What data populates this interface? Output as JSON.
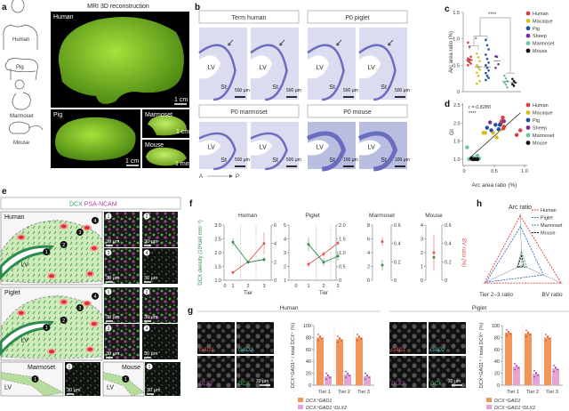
{
  "panel_labels": {
    "a": "a",
    "b": "b",
    "c": "c",
    "d": "d",
    "e": "e",
    "f": "f",
    "g": "g",
    "h": "h"
  },
  "a": {
    "title": "MRI 3D reconstruction",
    "species": [
      "Human",
      "Pig",
      "Marmoset",
      "Mouse"
    ],
    "panels": [
      {
        "label": "Human",
        "scale": "1 cm"
      },
      {
        "label": "Pig",
        "scale": "1 cm"
      },
      {
        "label": "Marmoset",
        "scale": "1 cm"
      },
      {
        "label": "Mouse",
        "scale": "1 mm"
      }
    ]
  },
  "b": {
    "groups": [
      {
        "title": "Term human",
        "lv": "LV",
        "st": "St",
        "scale": "500 µm"
      },
      {
        "title": "P0 piglet",
        "lv": "LV",
        "st": "St",
        "scale": "500 µm"
      },
      {
        "title": "P0 marmoset",
        "lv": "LV",
        "st": "St",
        "scale": "500 µm"
      },
      {
        "title": "P0 mouse",
        "lv": "LV",
        "st": "St",
        "scale": "100 µm"
      }
    ],
    "axis_a": "A",
    "axis_p": "P"
  },
  "e": {
    "header_dcx": "DCX",
    "header_psa": "PSA-NCAM",
    "schematics": [
      "Human",
      "Piglet",
      "Marmoset",
      "Mouse"
    ],
    "lv": "LV",
    "numbers": [
      "1",
      "2",
      "3",
      "4"
    ],
    "scale": "30 µm"
  },
  "colors": {
    "human": "#e03c3c",
    "macaque": "#d4c21a",
    "pig": "#1f4fa3",
    "sheep": "#7a2e96",
    "marmoset": "#6cc7a0",
    "mouse": "#111111",
    "dcx": "#2e8b4e",
    "bv": "#d9534f",
    "gad1": "#f0965a",
    "dlx2": "#e8a2d0",
    "piglet": "#2f6db8"
  },
  "chart_data": [
    {
      "id": "c",
      "type": "scatter",
      "ylabel": "Arc area ratio (%)",
      "ylim": [
        0,
        1.5
      ],
      "yticks": [
        "0",
        "0.5",
        "1.0",
        "1.5"
      ],
      "legend": [
        "Human",
        "Macaque",
        "Pig",
        "Sheep",
        "Marmoset",
        "Mouse"
      ],
      "significance": [
        "*",
        "****"
      ],
      "series": [
        {
          "name": "Human",
          "mean": 0.6,
          "values": [
            0.93,
            0.85,
            0.66,
            0.63,
            0.61,
            0.6,
            0.58,
            0.56,
            0.53,
            0.5
          ]
        },
        {
          "name": "Macaque",
          "mean": 0.47,
          "values": [
            0.72,
            0.65,
            0.58,
            0.5,
            0.46,
            0.42,
            0.36,
            0.3,
            0.2,
            0.15
          ]
        },
        {
          "name": "Pig",
          "mean": 0.47,
          "values": [
            0.98,
            0.88,
            0.8,
            0.7,
            0.62,
            0.55,
            0.5,
            0.45,
            0.4,
            0.35,
            0.3,
            0.26,
            0.22
          ]
        },
        {
          "name": "Sheep",
          "mean": 0.58,
          "values": [
            0.67,
            0.66,
            0.52,
            0.45
          ]
        },
        {
          "name": "Marmoset",
          "mean": 0.19,
          "values": [
            0.3,
            0.25,
            0.2,
            0.17,
            0.13,
            0.08
          ]
        },
        {
          "name": "Mouse",
          "mean": 0.17,
          "values": [
            0.24,
            0.2,
            0.17,
            0.14,
            0.11
          ]
        }
      ]
    },
    {
      "id": "d",
      "type": "scatter",
      "xlabel": "Arc area ratio (%)",
      "ylabel": "GI",
      "xlim": [
        0,
        1.0
      ],
      "ylim": [
        1.0,
        2.5
      ],
      "xticks": [
        "0",
        "0.5",
        "1.0"
      ],
      "yticks": [
        "1.0",
        "1.5",
        "2.0",
        "2.5"
      ],
      "annotation_r": "r = 0.8280",
      "annotation_sig": "****",
      "legend": [
        "Human",
        "Macaque",
        "Pig",
        "Sheep",
        "Marmoset",
        "Mouse"
      ],
      "fit": [
        [
          0.1,
          1.05
        ],
        [
          0.93,
          2.28
        ]
      ],
      "series": [
        {
          "name": "Human",
          "points": [
            [
              0.6,
              1.95
            ],
            [
              0.62,
              2.05
            ],
            [
              0.64,
              2.15
            ],
            [
              0.66,
              1.9
            ],
            [
              0.65,
              1.85
            ],
            [
              0.61,
              2.0
            ],
            [
              0.87,
              1.67
            ],
            [
              0.93,
              1.8
            ]
          ]
        },
        {
          "name": "Macaque",
          "points": [
            [
              0.32,
              1.73
            ],
            [
              0.35,
              1.73
            ],
            [
              0.48,
              1.73
            ],
            [
              0.54,
              1.6
            ],
            [
              0.58,
              1.8
            ]
          ]
        },
        {
          "name": "Pig",
          "points": [
            [
              0.38,
              1.87
            ],
            [
              0.45,
              1.8
            ],
            [
              0.52,
              1.95
            ],
            [
              0.57,
              1.83
            ],
            [
              0.59,
              1.95
            ]
          ]
        },
        {
          "name": "Sheep",
          "points": [
            [
              0.43,
              2.02
            ],
            [
              0.66,
              2.05
            ]
          ]
        },
        {
          "name": "Marmoset",
          "points": [
            [
              0.05,
              1.33
            ],
            [
              0.08,
              1.0
            ],
            [
              0.15,
              1.05
            ],
            [
              0.2,
              1.04
            ],
            [
              0.22,
              1.1
            ],
            [
              0.25,
              1.02
            ]
          ]
        },
        {
          "name": "Mouse",
          "points": [
            [
              0.12,
              1.02
            ],
            [
              0.14,
              1.0
            ],
            [
              0.18,
              1.0
            ],
            [
              0.22,
              1.0
            ]
          ]
        }
      ]
    },
    {
      "id": "f",
      "type": "line",
      "ylabel_left": "DCX density (10³cell mm⁻²)",
      "ylabel_right": "BV ratio (%)",
      "xlabel": "Tier",
      "panels": [
        {
          "title": "Human",
          "xticks": [
            "0",
            "1",
            "2",
            "3"
          ],
          "left": [
            1,
            3
          ],
          "left_ticks": [
            "1.0",
            "1.5",
            "2.0",
            "2.5",
            "3.0"
          ],
          "right": [
            0,
            6
          ],
          "right_ticks": [
            "0",
            "2",
            "4",
            "6"
          ],
          "dcx": [
            2.38,
            1.65,
            1.75
          ],
          "dcx_err": [
            0.15,
            0.06,
            0.08
          ],
          "bv": [
            0.85,
            2,
            4
          ],
          "bv_err": [
            0.15,
            0.1,
            1.2
          ]
        },
        {
          "title": "Piglet",
          "xticks": [
            "0",
            "1",
            "2",
            "3"
          ],
          "left": [
            1,
            5
          ],
          "left_ticks": [
            "1",
            "2",
            "3",
            "4",
            "5"
          ],
          "right": [
            0,
            2
          ],
          "right_ticks": [
            "0",
            "0.5",
            "1.0",
            "1.5",
            "2.0"
          ],
          "dcx": [
            3.6,
            2.3,
            2.75
          ],
          "dcx_err": [
            0.5,
            0.3,
            0.35
          ],
          "bv": [
            0.58,
            0.95,
            1.35
          ],
          "bv_err": [
            0.12,
            0.1,
            0.1
          ]
        },
        {
          "title": "Marmoset",
          "left": [
            0,
            8
          ],
          "left_ticks": [
            "0",
            "2",
            "4",
            "6",
            "8"
          ],
          "right": [
            0,
            0.6
          ],
          "right_ticks": [
            "0",
            "0.2",
            "0.4",
            "0.6"
          ],
          "dcx": [
            2.2
          ],
          "dcx_err": [
            0.8
          ],
          "bv": [
            0.42
          ],
          "bv_err": [
            0.05
          ]
        },
        {
          "title": "Mouse",
          "left": [
            0,
            4
          ],
          "left_ticks": [
            "0",
            "1",
            "2",
            "3",
            "4"
          ],
          "right": [
            0,
            0.6
          ],
          "right_ticks": [
            "0",
            "0.2",
            "0.4",
            "0.6"
          ],
          "dcx": [
            1.65
          ],
          "dcx_err": [
            0.1
          ],
          "bv": [
            0.3
          ],
          "bv_err": [
            0.2
          ]
        }
      ]
    },
    {
      "id": "g",
      "type": "bar",
      "ylabel": "DCX⁺GAD1⁺ / total DCX⁺ (%)",
      "ylim": [
        0,
        100
      ],
      "yticks": [
        "0",
        "20",
        "40",
        "60",
        "80",
        "100"
      ],
      "categories": [
        "Tier 1",
        "Tier 2",
        "Tier 3"
      ],
      "legend": [
        "DCX⁺GAD1",
        "DCX⁺GAD1⁺DLX2"
      ],
      "image_labels": [
        "GAD1",
        "GAD2",
        "DLX2",
        "DCX"
      ],
      "scale": "30 µm",
      "panels": [
        {
          "title": "Human",
          "series": [
            {
              "name": "DCX⁺GAD1",
              "values": [
                80,
                77,
                80
              ]
            },
            {
              "name": "DCX⁺GAD1⁺DLX2",
              "values": [
                15,
                18,
                15
              ]
            }
          ]
        },
        {
          "title": "Piglet",
          "series": [
            {
              "name": "DCX⁺GAD1",
              "values": [
                88,
                87,
                80
              ]
            },
            {
              "name": "DCX⁺GAD1⁺DLX2",
              "values": [
                31,
                19,
                28
              ]
            }
          ]
        }
      ]
    },
    {
      "id": "h",
      "type": "radar",
      "axes": [
        "Arc ratio",
        "Tier 2–3 ratio",
        "BV ratio"
      ],
      "series": [
        {
          "name": "Human",
          "values": [
            1.0,
            1.0,
            1.0
          ]
        },
        {
          "name": "Piglet",
          "values": [
            0.78,
            0.95,
            0.55
          ]
        },
        {
          "name": "Marmoset",
          "values": [
            0.28,
            0.12,
            0.12
          ]
        },
        {
          "name": "Mouse",
          "values": [
            0.2,
            0.12,
            0.05
          ]
        }
      ]
    }
  ]
}
